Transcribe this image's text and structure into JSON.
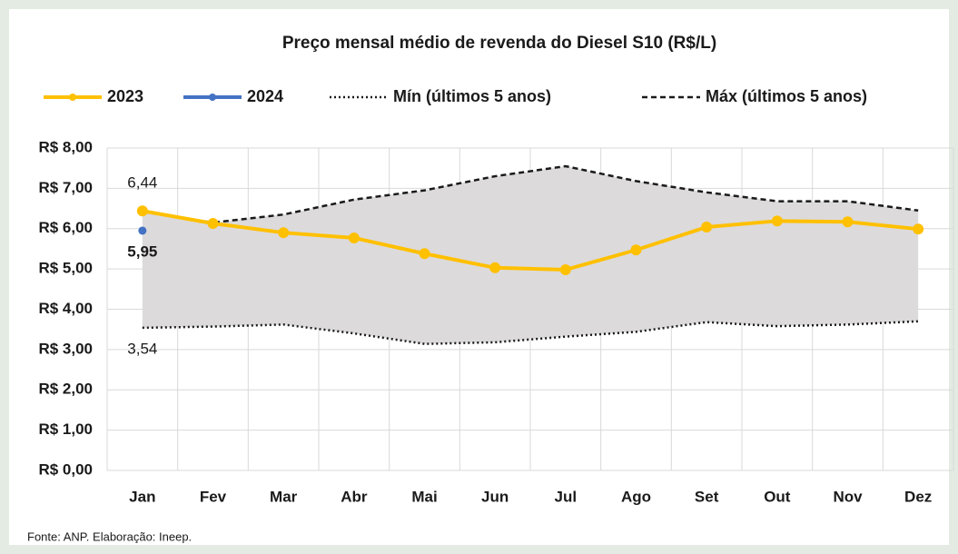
{
  "chart_data": {
    "type": "line",
    "title": "Preço mensal médio de revenda do Diesel S10 (R$/L)",
    "categories": [
      "Jan",
      "Fev",
      "Mar",
      "Abr",
      "Mai",
      "Jun",
      "Jul",
      "Ago",
      "Set",
      "Out",
      "Nov",
      "Dez"
    ],
    "series": [
      {
        "name": "2023",
        "color": "#ffc000",
        "line": "solid",
        "marker": true,
        "values": [
          6.44,
          6.13,
          5.9,
          5.77,
          5.38,
          5.03,
          4.98,
          5.47,
          6.04,
          6.19,
          6.17,
          5.99
        ],
        "value_labels": [
          "6,44",
          null,
          null,
          null,
          null,
          null,
          null,
          null,
          null,
          null,
          null,
          null
        ]
      },
      {
        "name": "2024",
        "color": "#4472c4",
        "line": "solid",
        "marker": true,
        "values": [
          5.95,
          null,
          null,
          null,
          null,
          null,
          null,
          null,
          null,
          null,
          null,
          null
        ],
        "value_labels": [
          "5,95",
          null,
          null,
          null,
          null,
          null,
          null,
          null,
          null,
          null,
          null,
          null
        ]
      },
      {
        "name": "Mín (últimos 5 anos)",
        "color": "#1a1a1a",
        "line": "dotted",
        "marker": false,
        "values": [
          3.54,
          3.57,
          3.62,
          3.4,
          3.14,
          3.18,
          3.32,
          3.44,
          3.68,
          3.58,
          3.62,
          3.7
        ],
        "value_labels": [
          "3,54",
          null,
          null,
          null,
          null,
          null,
          null,
          null,
          null,
          null,
          null,
          null
        ]
      },
      {
        "name": "Máx (últimos 5 anos)",
        "color": "#1a1a1a",
        "line": "dashed",
        "marker": false,
        "values": [
          6.42,
          6.15,
          6.35,
          6.72,
          6.95,
          7.3,
          7.55,
          7.18,
          6.9,
          6.68,
          6.68,
          6.45
        ]
      }
    ],
    "range_fill_color": "#dcdadb",
    "ylim": [
      0,
      8
    ],
    "yticks": [
      {
        "value": 0,
        "label": "R$ 0,00"
      },
      {
        "value": 1,
        "label": "R$ 1,00"
      },
      {
        "value": 2,
        "label": "R$ 2,00"
      },
      {
        "value": 3,
        "label": "R$ 3,00"
      },
      {
        "value": 4,
        "label": "R$ 4,00"
      },
      {
        "value": 5,
        "label": "R$ 5,00"
      },
      {
        "value": 6,
        "label": "R$ 6,00"
      },
      {
        "value": 7,
        "label": "R$ 7,00"
      },
      {
        "value": 8,
        "label": "R$ 8,00"
      }
    ],
    "grid": true,
    "source": "Fonte: ANP. Elaboração: Ineep."
  }
}
